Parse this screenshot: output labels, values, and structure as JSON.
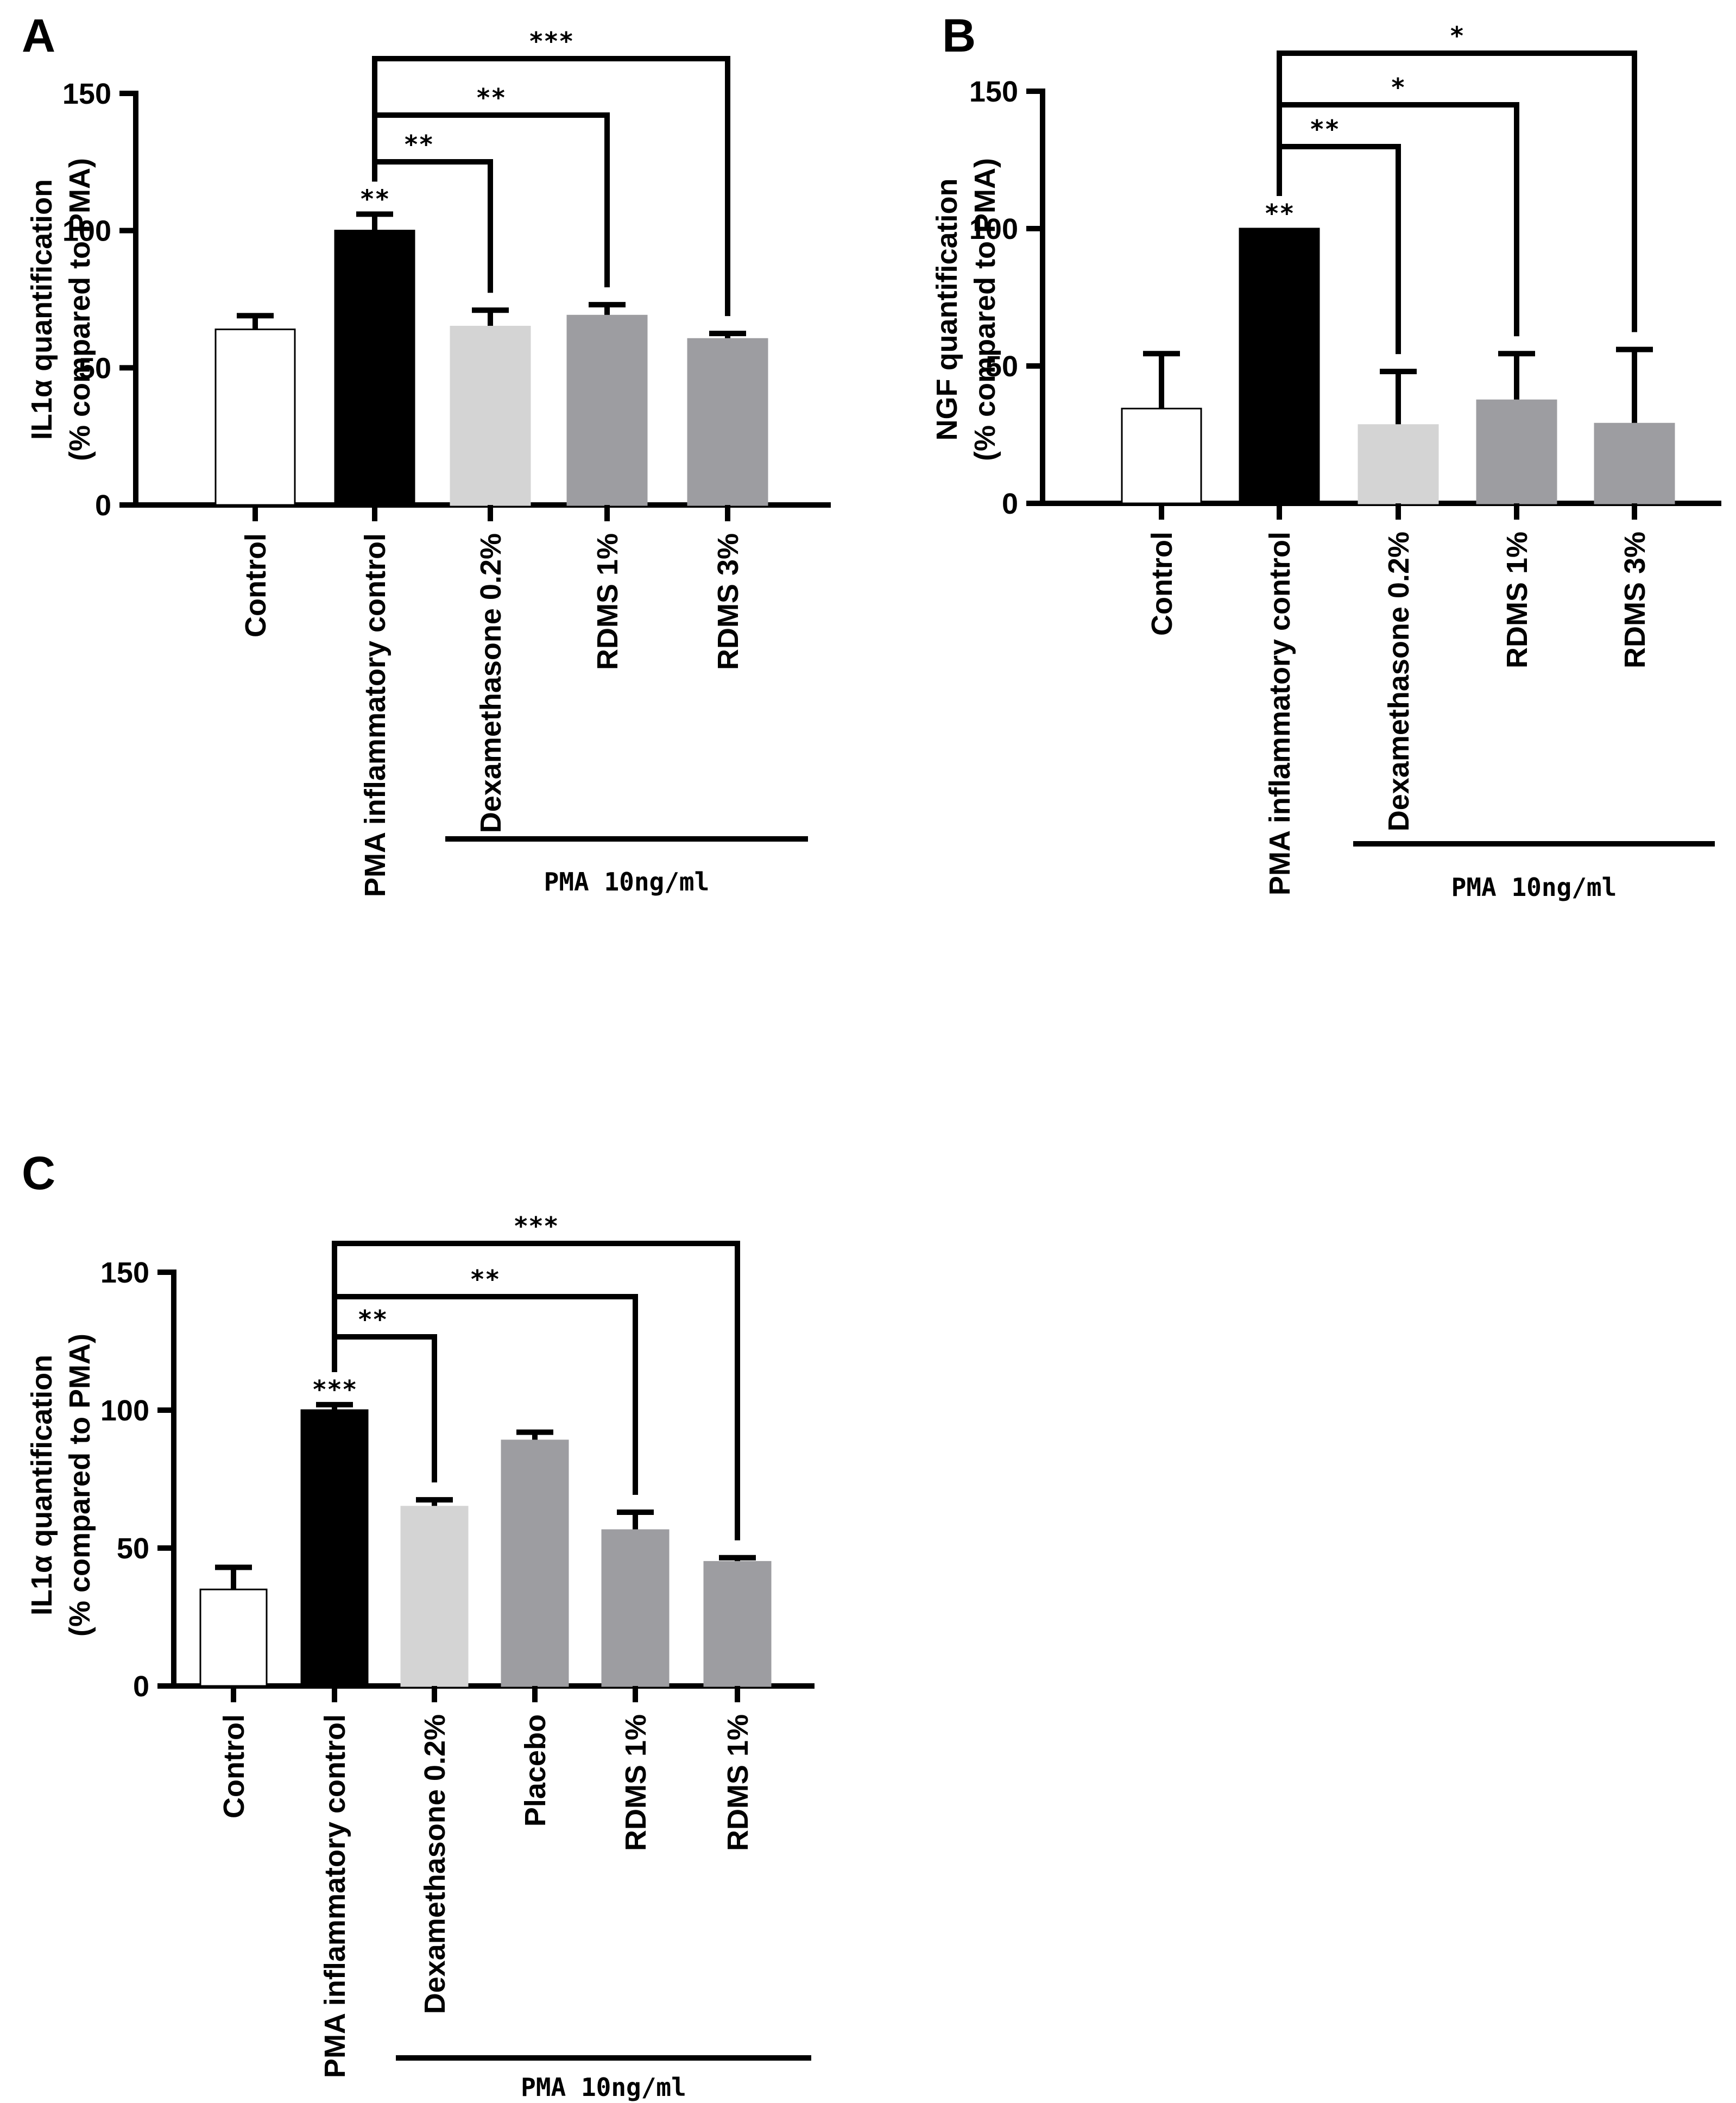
{
  "chart_data": [
    {
      "panel": "A",
      "type": "bar",
      "ylabel_line1": "IL1α quantification",
      "ylabel_line2": "(% compared to PMA)",
      "ylim": [
        0,
        150
      ],
      "yticks": [
        "0",
        "50",
        "100",
        "150"
      ],
      "categories": [
        "Control",
        "PMA inflammatory control",
        "Dexamethasone 0.2%",
        "RDMS 1%",
        "RDMS 3%"
      ],
      "values": [
        64,
        100,
        65,
        69,
        60.5
      ],
      "errors": [
        5,
        6,
        6,
        4,
        2
      ],
      "bar_colors": [
        "#ffffff",
        "#000000",
        "#d4d4d4",
        "#9d9da1",
        "#9d9da1"
      ],
      "bar_star": {
        "index": 1,
        "label": "**"
      },
      "brackets": [
        {
          "to_index": 2,
          "label": "**"
        },
        {
          "to_index": 3,
          "label": "**"
        },
        {
          "to_index": 4,
          "label": "***"
        }
      ],
      "treatment_group": {
        "label": "PMA 10ng/ml",
        "from_index": 2,
        "to_index": 4
      }
    },
    {
      "panel": "B",
      "type": "bar",
      "ylabel_line1": "NGF quantification",
      "ylabel_line2": "(% compared to PMA)",
      "ylim": [
        0,
        150
      ],
      "yticks": [
        "0",
        "50",
        "100",
        "150"
      ],
      "categories": [
        "Control",
        "PMA inflammatory control",
        "Dexamethasone 0.2%",
        "RDMS 1%",
        "RDMS 3%"
      ],
      "values": [
        34.5,
        100,
        28.5,
        37.5,
        29
      ],
      "errors": [
        20,
        0,
        19.5,
        17,
        27
      ],
      "bar_colors": [
        "#ffffff",
        "#000000",
        "#d4d4d4",
        "#9d9da1",
        "#9d9da1"
      ],
      "bar_star": {
        "index": 1,
        "label": "**"
      },
      "brackets": [
        {
          "to_index": 2,
          "label": "**"
        },
        {
          "to_index": 3,
          "label": "*"
        },
        {
          "to_index": 4,
          "label": "*"
        }
      ],
      "treatment_group": {
        "label": "PMA 10ng/ml",
        "from_index": 2,
        "to_index": 4
      }
    },
    {
      "panel": "C",
      "type": "bar",
      "ylabel_line1": "IL1α quantification",
      "ylabel_line2": "(% compared to PMA)",
      "ylim": [
        0,
        150
      ],
      "yticks": [
        "0",
        "50",
        "100",
        "150"
      ],
      "categories": [
        "Control",
        "PMA inflammatory control",
        "Dexamethasone 0.2%",
        "Placebo",
        "RDMS 1%",
        "RDMS 1%"
      ],
      "values": [
        35,
        100,
        65,
        89,
        56.5,
        45
      ],
      "errors": [
        8,
        2,
        2.5,
        3,
        6.5,
        1.5
      ],
      "bar_colors": [
        "#ffffff",
        "#000000",
        "#d4d4d4",
        "#9d9da1",
        "#9d9da1",
        "#9d9da1"
      ],
      "bar_star": {
        "index": 1,
        "label": "***"
      },
      "brackets": [
        {
          "to_index": 2,
          "label": "**"
        },
        {
          "to_index": 4,
          "label": "**"
        },
        {
          "to_index": 5,
          "label": "***"
        }
      ],
      "treatment_group": {
        "label": "PMA 10ng/ml",
        "from_index": 2,
        "to_index": 5
      }
    }
  ]
}
